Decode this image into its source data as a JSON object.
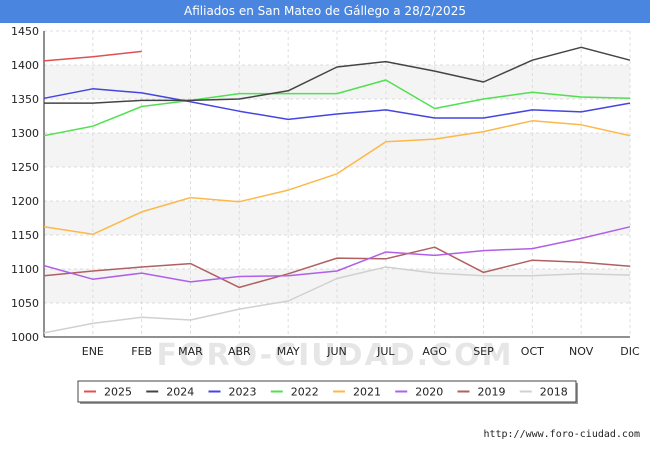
{
  "chart_data": {
    "type": "line",
    "title": "Afiliados en San Mateo de Gállego a 28/2/2025",
    "categories": [
      "",
      "ENE",
      "FEB",
      "MAR",
      "ABR",
      "MAY",
      "JUN",
      "JUL",
      "AGO",
      "SEP",
      "OCT",
      "NOV",
      "DIC"
    ],
    "ylim": [
      1000,
      1450
    ],
    "yticks": [
      1000,
      1050,
      1100,
      1150,
      1200,
      1250,
      1300,
      1350,
      1400,
      1450
    ],
    "grid": true,
    "legend_position": "bottom",
    "series": [
      {
        "name": "2025",
        "color": "#e05050",
        "values": [
          1406,
          1412,
          1420,
          null,
          null,
          null,
          null,
          null,
          null,
          null,
          null,
          null,
          null
        ]
      },
      {
        "name": "2024",
        "color": "#444444",
        "values": [
          1344,
          1344,
          1348,
          1348,
          1350,
          1362,
          1397,
          1405,
          1391,
          1375,
          1407,
          1426,
          1407
        ]
      },
      {
        "name": "2023",
        "color": "#4545e0",
        "values": [
          1351,
          1365,
          1359,
          1346,
          1332,
          1320,
          1328,
          1334,
          1322,
          1322,
          1334,
          1331,
          1344
        ]
      },
      {
        "name": "2022",
        "color": "#50e050",
        "values": [
          1296,
          1310,
          1339,
          1348,
          1358,
          1358,
          1358,
          1378,
          1336,
          1350,
          1360,
          1353,
          1351
        ]
      },
      {
        "name": "2021",
        "color": "#fdb84a",
        "values": [
          1162,
          1151,
          1184,
          1205,
          1199,
          1216,
          1240,
          1287,
          1291,
          1302,
          1318,
          1312,
          1296
        ]
      },
      {
        "name": "2020",
        "color": "#b060e8",
        "values": [
          1105,
          1085,
          1094,
          1081,
          1089,
          1090,
          1097,
          1125,
          1120,
          1127,
          1130,
          1145,
          1162
        ]
      },
      {
        "name": "2019",
        "color": "#b06060",
        "values": [
          1090,
          1097,
          1103,
          1108,
          1073,
          1093,
          1116,
          1115,
          1132,
          1095,
          1113,
          1110,
          1104
        ]
      },
      {
        "name": "2018",
        "color": "#d0d0d0",
        "values": [
          1006,
          1020,
          1029,
          1025,
          1041,
          1053,
          1086,
          1103,
          1094,
          1090,
          1090,
          1093,
          1091
        ]
      }
    ]
  },
  "watermark": "FORO-CIUDAD.COM",
  "source": "http://www.foro-ciudad.com"
}
